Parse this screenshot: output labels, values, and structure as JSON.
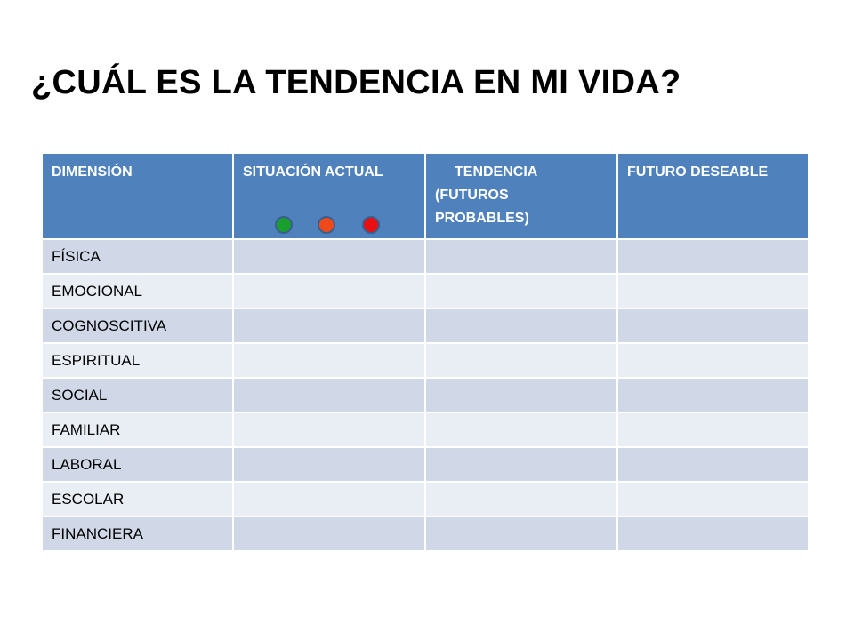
{
  "title": "¿CUÁL ES LA TENDENCIA EN MI VIDA?",
  "table": {
    "headers": {
      "dimension": "DIMENSIÓN",
      "situation": "SITUACIÓN ACTUAL",
      "trend_line1": "TENDENCIA",
      "trend_line2": "(FUTUROS",
      "trend_line3": "PROBABLES)",
      "future": "FUTURO DESEABLE"
    },
    "status_dots": [
      {
        "name": "green",
        "color": "#1a9e2e"
      },
      {
        "name": "orange",
        "color": "#f04a1a"
      },
      {
        "name": "red",
        "color": "#e81010"
      }
    ],
    "rows": [
      "FÍSICA",
      "EMOCIONAL",
      "COGNOSCITIVA",
      "ESPIRITUAL",
      "SOCIAL",
      "FAMILIAR",
      "LABORAL",
      "ESCOLAR",
      "FINANCIERA"
    ]
  },
  "colors": {
    "header_bg": "#4f81bd",
    "row_odd": "#d0d8e8",
    "row_even": "#e9edf4"
  }
}
